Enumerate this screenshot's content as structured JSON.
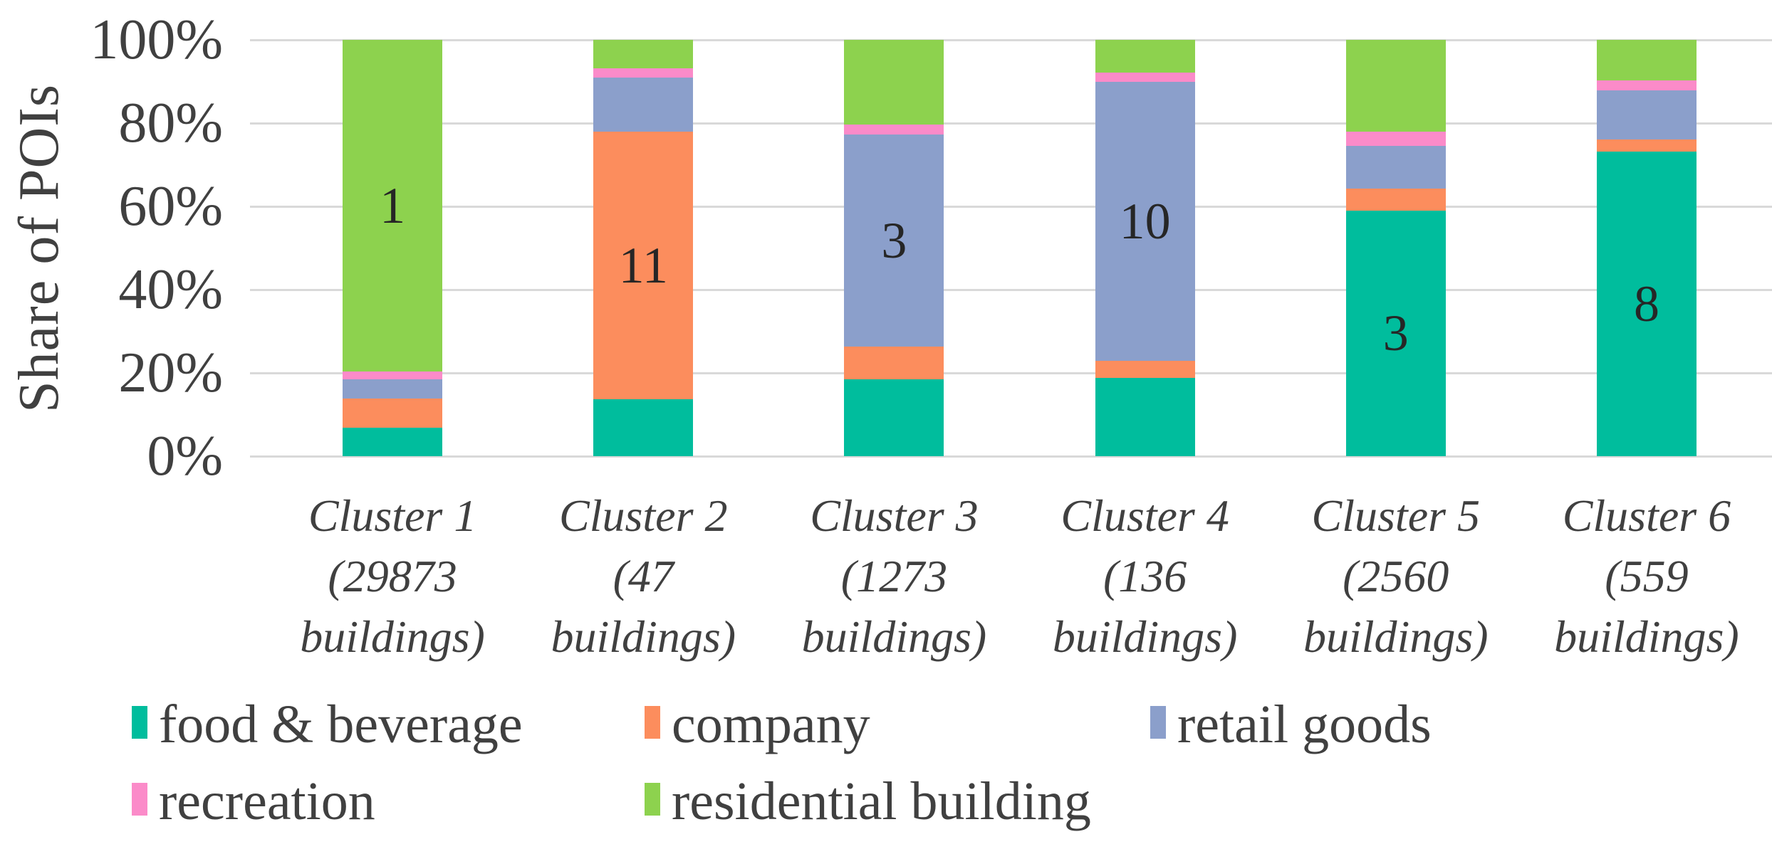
{
  "chart_data": {
    "type": "bar",
    "stacked": true,
    "title": "",
    "ylabel": "Share of POIs",
    "xlabel": "",
    "ylim": [
      0,
      100
    ],
    "unit": "percent",
    "grid": "horizontal",
    "legend_position": "bottom",
    "yticks": [
      {
        "label": "0%",
        "value": 0
      },
      {
        "label": "20%",
        "value": 20
      },
      {
        "label": "40%",
        "value": 40
      },
      {
        "label": "60%",
        "value": 60
      },
      {
        "label": "80%",
        "value": 80
      },
      {
        "label": "100%",
        "value": 100
      }
    ],
    "categories": [
      {
        "lines": [
          "Cluster 1",
          "(29873",
          "buildings)"
        ]
      },
      {
        "lines": [
          "Cluster 2",
          "(47",
          "buildings)"
        ]
      },
      {
        "lines": [
          "Cluster 3",
          "(1273",
          "buildings)"
        ]
      },
      {
        "lines": [
          "Cluster 4",
          "(136",
          "buildings)"
        ]
      },
      {
        "lines": [
          "Cluster 5",
          "(2560",
          "buildings)"
        ]
      },
      {
        "lines": [
          "Cluster 6",
          "(559",
          "buildings)"
        ]
      }
    ],
    "series": [
      {
        "name": "food & beverage",
        "color": "#00BD9D",
        "values": [
          6.8,
          13.6,
          18.4,
          18.8,
          59.0,
          73.2
        ]
      },
      {
        "name": "company",
        "color": "#FC8D5D",
        "values": [
          7.0,
          64.4,
          8.0,
          4.1,
          5.2,
          2.8
        ]
      },
      {
        "name": "retail goods",
        "color": "#8B9FCB",
        "values": [
          4.7,
          13.0,
          50.9,
          67.0,
          10.4,
          11.9
        ]
      },
      {
        "name": "recreation",
        "color": "#FB8BC9",
        "values": [
          1.8,
          2.2,
          2.4,
          2.3,
          3.4,
          2.3
        ]
      },
      {
        "name": "residential building",
        "color": "#8DD24E",
        "values": [
          79.7,
          6.8,
          20.3,
          7.8,
          22.0,
          9.8
        ]
      }
    ],
    "bar_labels": [
      {
        "text": "1",
        "series_index": 4
      },
      {
        "text": "11",
        "series_index": 1
      },
      {
        "text": "3",
        "series_index": 2
      },
      {
        "text": "10",
        "series_index": 2
      },
      {
        "text": "3",
        "series_index": 0
      },
      {
        "text": "8",
        "series_index": 0
      }
    ]
  },
  "colors": {
    "gridline": "#D9D9D9",
    "axis_text": "#404040",
    "bar_label_text": "#262626",
    "background": "#FFFFFF"
  }
}
